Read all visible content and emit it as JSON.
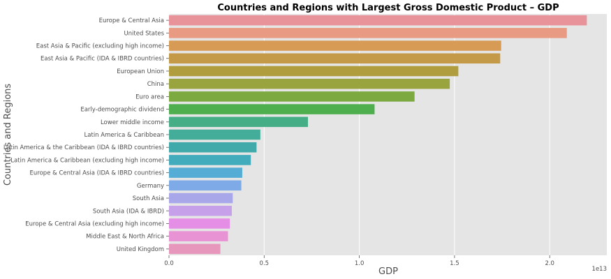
{
  "chart_data": {
    "type": "bar",
    "orientation": "horizontal",
    "title": "Countries and Regions with Largest Gross Domestic Product – GDP",
    "xlabel": "GDP",
    "ylabel": "Countries and Regions",
    "x_scale_label": "1e13",
    "x_scale": 10000000000000.0,
    "xlim": [
      0,
      2.3
    ],
    "xticks": [
      0.0,
      0.5,
      1.0,
      1.5,
      2.0
    ],
    "xtick_labels": [
      "0.0",
      "0.5",
      "1.0",
      "1.5",
      "2.0"
    ],
    "grid": true,
    "categories": [
      "Europe & Central Asia",
      "United States",
      "East Asia & Pacific (excluding high income)",
      "East Asia & Pacific (IDA & IBRD countries)",
      "European Union",
      "China",
      "Euro area",
      "Early-demographic dividend",
      "Lower middle income",
      "Latin America & Caribbean",
      "Latin America & the Caribbean (IDA & IBRD countries)",
      "Latin America & Caribbean (excluding high income)",
      "Europe & Central Asia (IDA & IBRD countries)",
      "Germany",
      "South Asia",
      "South Asia (IDA & IBRD)",
      "Europe & Central Asia (excluding high income)",
      "Middle East & North Africa",
      "United Kingdom"
    ],
    "values": [
      2.195,
      2.09,
      1.745,
      1.74,
      1.52,
      1.475,
      1.29,
      1.08,
      0.73,
      0.48,
      0.46,
      0.43,
      0.385,
      0.38,
      0.335,
      0.33,
      0.32,
      0.31,
      0.27
    ],
    "colors": [
      "#e8929a",
      "#e89b82",
      "#d79b55",
      "#c49a48",
      "#b09e3e",
      "#9aa43f",
      "#7caa40",
      "#4fae4e",
      "#45ae87",
      "#44ad99",
      "#40aaaa",
      "#42acbc",
      "#55acd4",
      "#7eaae8",
      "#a8a7ea",
      "#c7a0ea",
      "#e48fe5",
      "#e893d4",
      "#e897bc"
    ]
  }
}
